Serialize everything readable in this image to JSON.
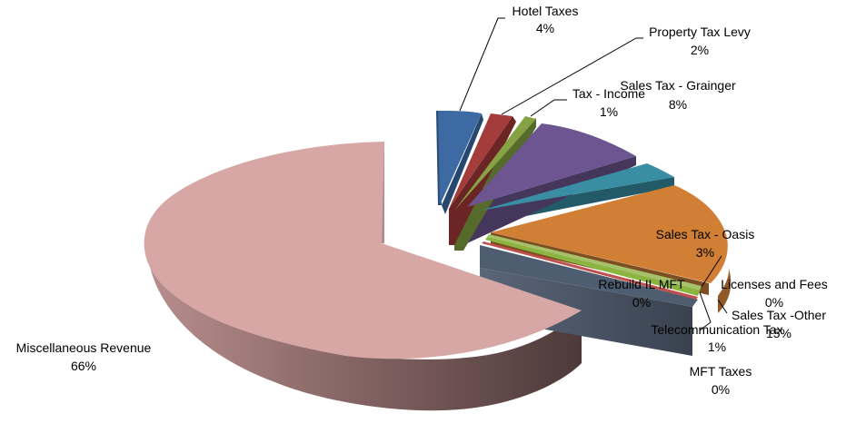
{
  "chart_data": {
    "type": "pie",
    "style": "3d-exploded",
    "legend": "none",
    "slices": [
      {
        "key": "hotel",
        "label": "Hotel Taxes",
        "percent_label": "4%",
        "value": 4,
        "color": "#3e6aa3"
      },
      {
        "key": "property",
        "label": "Property Tax Levy",
        "percent_label": "2%",
        "value": 2,
        "color": "#a33c3a"
      },
      {
        "key": "income",
        "label": "Tax - Income",
        "percent_label": "1%",
        "value": 1,
        "color": "#86a244"
      },
      {
        "key": "grainger",
        "label": "Sales Tax - Grainger",
        "percent_label": "8%",
        "value": 8,
        "color": "#6c5590"
      },
      {
        "key": "oasis",
        "label": "Sales Tax - Oasis",
        "percent_label": "3%",
        "value": 3,
        "color": "#3a8ea4"
      },
      {
        "key": "other",
        "label": "Sales Tax -Other",
        "percent_label": "15%",
        "value": 15,
        "color": "#d07f35"
      },
      {
        "key": "licenses",
        "label": "Licenses and Fees",
        "percent_label": "0%",
        "value": 0,
        "color": "#a5c26a"
      },
      {
        "key": "telecom",
        "label": "Telecommunication Tax",
        "percent_label": "1%",
        "value": 1,
        "color": "#8ab53e"
      },
      {
        "key": "rebuild",
        "label": "Rebuild IL MFT",
        "percent_label": "0%",
        "value": 0,
        "color": "#c0504d"
      },
      {
        "key": "mft",
        "label": "MFT Taxes",
        "percent_label": "0%",
        "value": 0,
        "color": "#4f5d70"
      },
      {
        "key": "misc",
        "label": "Miscellaneous Revenue",
        "percent_label": "66%",
        "value": 66,
        "color": "#d7a7a6"
      }
    ]
  }
}
